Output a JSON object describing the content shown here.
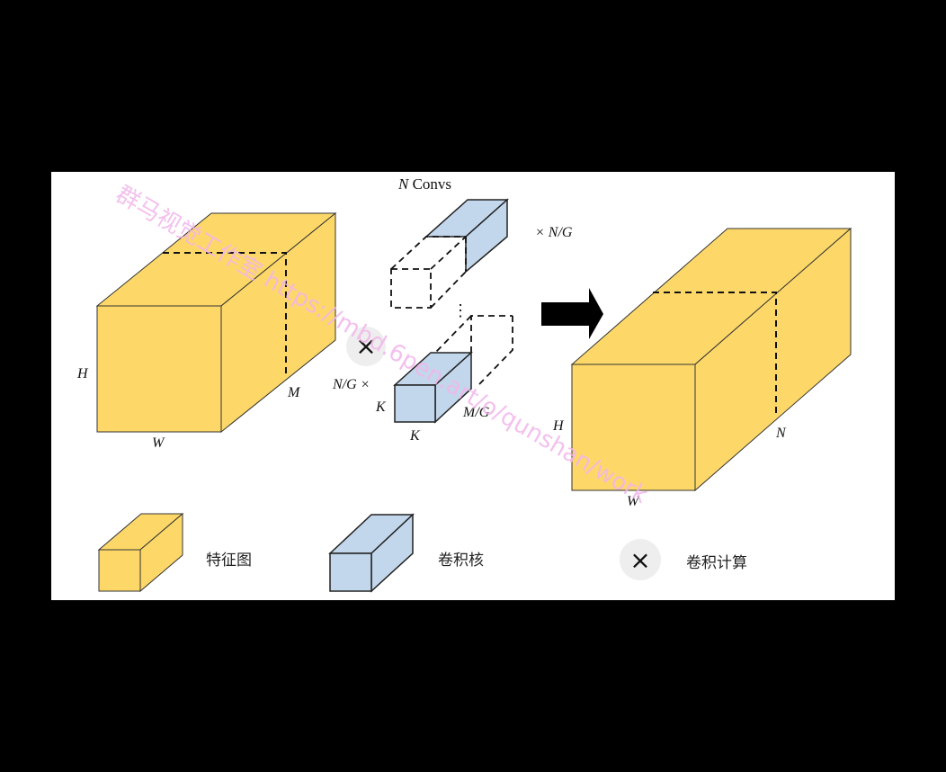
{
  "colors": {
    "feature": "#fdd869",
    "kernel": "#c3d7ec",
    "conv_circle": "#eeeeee",
    "watermark": "#f2b6ea"
  },
  "diagram": {
    "conv_title_var": "N",
    "conv_title_text": " Convs",
    "input_cube": {
      "height_label": "H",
      "width_label": "W",
      "depth_label": "M"
    },
    "kernel_group": {
      "repeat_label": "× N/G",
      "multiplier_label": "N/G ×",
      "kernel_h_label": "K",
      "kernel_w_label": "K",
      "kernel_depth_label": "M/G",
      "ellipsis": "⋮",
      "times_symbol": "×"
    },
    "output_cube": {
      "height_label": "H",
      "width_label": "W",
      "depth_label": "N"
    }
  },
  "legend": {
    "feature_map": "特征图",
    "kernel": "卷积核",
    "conv_op_symbol": "×",
    "conv_op": "卷积计算"
  },
  "watermark": "群马视觉工作室 https://mbd.6pen.art/o/qunshan/work"
}
